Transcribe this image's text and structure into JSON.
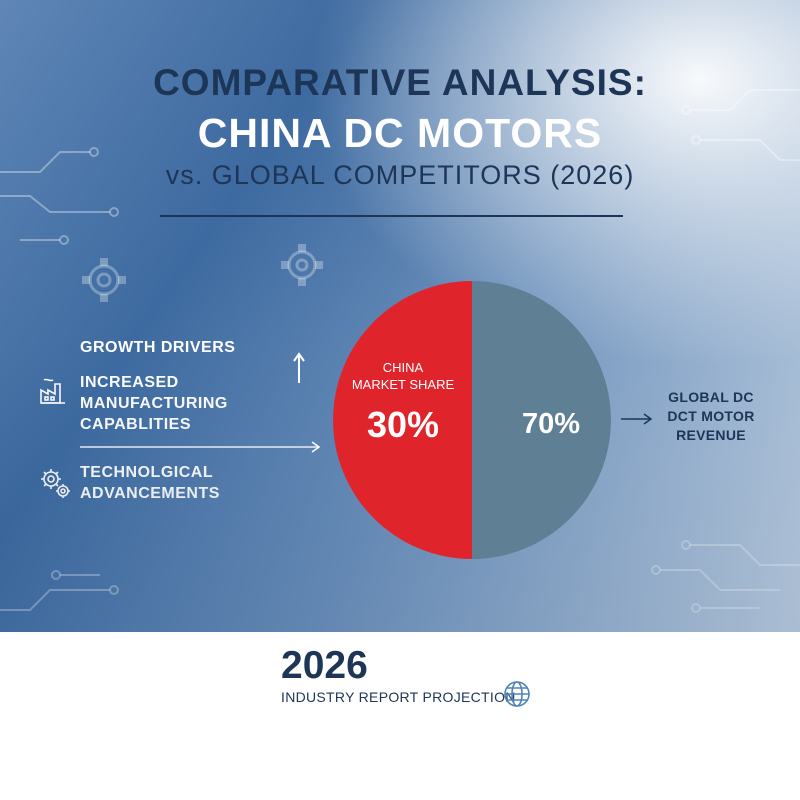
{
  "header": {
    "line1": "COMPARATIVE ANALYSIS:",
    "line2": "CHINA DC MOTORS",
    "line3": "vs. GLOBAL COMPETITORS (2026)"
  },
  "drivers": {
    "title": "GROWTH DRIVERS",
    "items": [
      {
        "label": "INCREASED MANUFACTURING CAPABLITIES",
        "icon": "factory-icon"
      },
      {
        "label": "TECHNOLGICAL ADVANCEMENTS",
        "icon": "gears-icon"
      }
    ]
  },
  "chart_data": {
    "type": "pie",
    "slices": [
      {
        "label": "CHINA MARKET SHARE",
        "value": 30,
        "display": "30%",
        "color": "#e0242c"
      },
      {
        "label": "",
        "value": 70,
        "display": "70%",
        "color": "#5f7f94"
      }
    ],
    "annotation": "GLOBAL DC DCT MOTOR REVENUE",
    "annotation_lines": [
      "GLOBAL DC",
      "DCT MOTOR",
      "REVENUE"
    ]
  },
  "footer": {
    "year": "2026",
    "subtitle": "INDUSTRY REPORT PROJECTION",
    "icon": "globe-icon"
  },
  "colors": {
    "navy": "#1d3557",
    "red": "#e0242c",
    "slate": "#5f7f94"
  }
}
